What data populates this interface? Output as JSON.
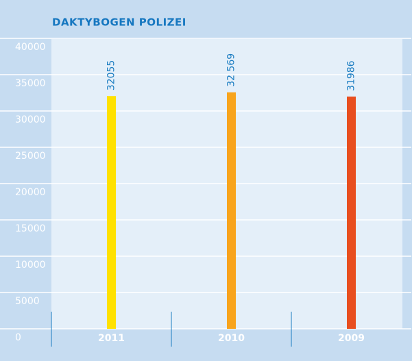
{
  "chart_data": {
    "type": "bar",
    "title": "DAKTYBOGEN POLIZEI",
    "categories": [
      "2011",
      "2010",
      "2009"
    ],
    "values": [
      32055,
      32569,
      31986
    ],
    "value_labels": [
      "32055",
      "32 569",
      "31986"
    ],
    "colors": [
      "#ffe100",
      "#f8a41c",
      "#e84e1f"
    ],
    "ylim": [
      0,
      40000
    ],
    "yticks": [
      0,
      5000,
      10000,
      15000,
      20000,
      25000,
      30000,
      35000,
      40000
    ],
    "grid": true
  }
}
